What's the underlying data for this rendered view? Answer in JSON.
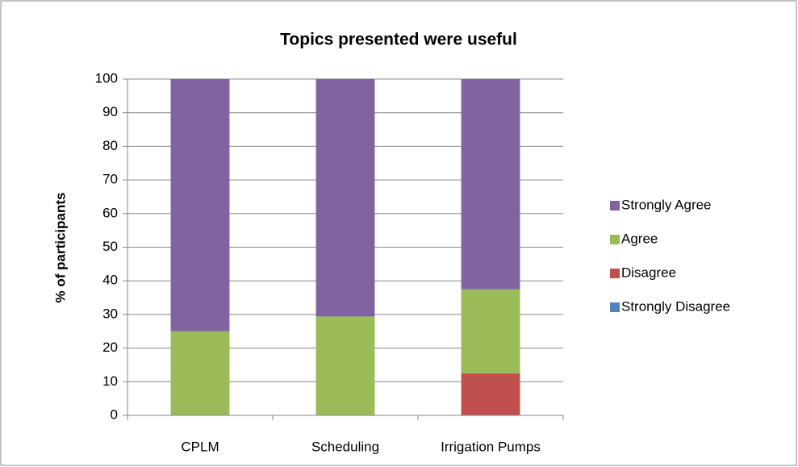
{
  "chart_data": {
    "type": "stacked_bar",
    "title": "Topics presented were useful",
    "y_label": "% of participants",
    "categories": [
      "CPLM",
      "Scheduling",
      "Irrigation Pumps"
    ],
    "series": [
      {
        "name": "Strongly Disagree",
        "color": "#4f81bd",
        "values": [
          0,
          0,
          0
        ]
      },
      {
        "name": "Disagree",
        "color": "#c0504d",
        "values": [
          0,
          0,
          12.5
        ]
      },
      {
        "name": "Agree",
        "color": "#9bbb59",
        "values": [
          25,
          29.4,
          25
        ]
      },
      {
        "name": "Strongly Agree",
        "color": "#8064a2",
        "values": [
          75,
          70.6,
          62.5
        ]
      }
    ],
    "ylim": [
      0,
      100
    ],
    "yticks": [
      0,
      10,
      20,
      30,
      40,
      50,
      60,
      70,
      80,
      90,
      100
    ],
    "grid": true,
    "legend": "right"
  }
}
